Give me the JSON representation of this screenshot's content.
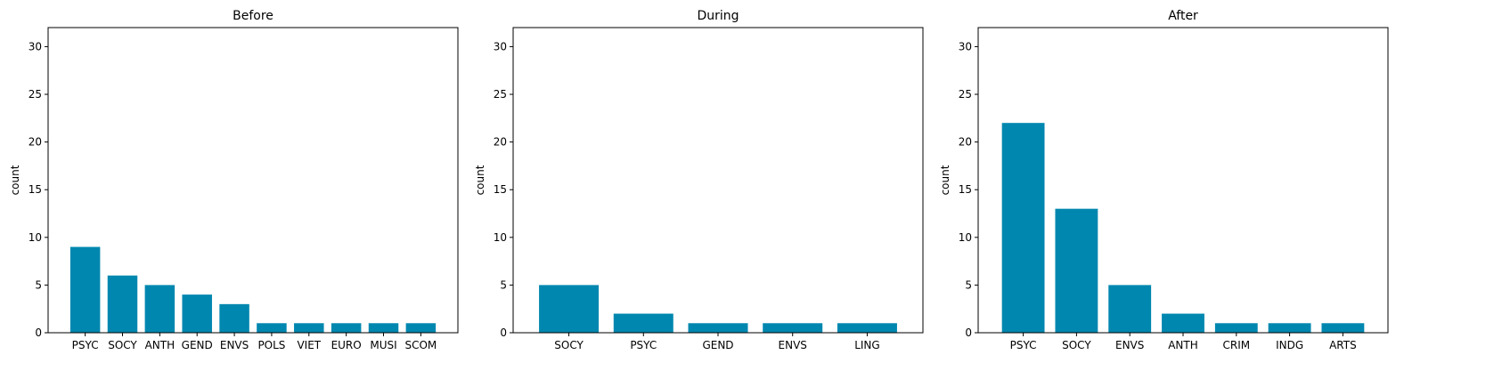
{
  "figure": {
    "bar_color": "#0087AF"
  },
  "chart_data": [
    {
      "type": "bar",
      "title": "Before",
      "xlabel": "",
      "ylabel": "count",
      "ylim": [
        0,
        32
      ],
      "yticks": [
        0,
        5,
        10,
        15,
        20,
        25,
        30
      ],
      "categories": [
        "PSYC",
        "SOCY",
        "ANTH",
        "GEND",
        "ENVS",
        "POLS",
        "VIET",
        "EURO",
        "MUSI",
        "SCOM"
      ],
      "values": [
        9,
        6,
        5,
        4,
        3,
        1,
        1,
        1,
        1,
        1
      ],
      "grid": false
    },
    {
      "type": "bar",
      "title": "During",
      "xlabel": "",
      "ylabel": "count",
      "ylim": [
        0,
        32
      ],
      "yticks": [
        0,
        5,
        10,
        15,
        20,
        25,
        30
      ],
      "categories": [
        "SOCY",
        "PSYC",
        "GEND",
        "ENVS",
        "LING"
      ],
      "values": [
        5,
        2,
        1,
        1,
        1
      ],
      "grid": false
    },
    {
      "type": "bar",
      "title": "After",
      "xlabel": "",
      "ylabel": "count",
      "ylim": [
        0,
        32
      ],
      "yticks": [
        0,
        5,
        10,
        15,
        20,
        25,
        30
      ],
      "categories": [
        "PSYC",
        "SOCY",
        "ENVS",
        "ANTH",
        "CRIM",
        "INDG",
        "ARTS"
      ],
      "values": [
        22,
        13,
        5,
        2,
        1,
        1,
        1
      ],
      "grid": false
    }
  ]
}
